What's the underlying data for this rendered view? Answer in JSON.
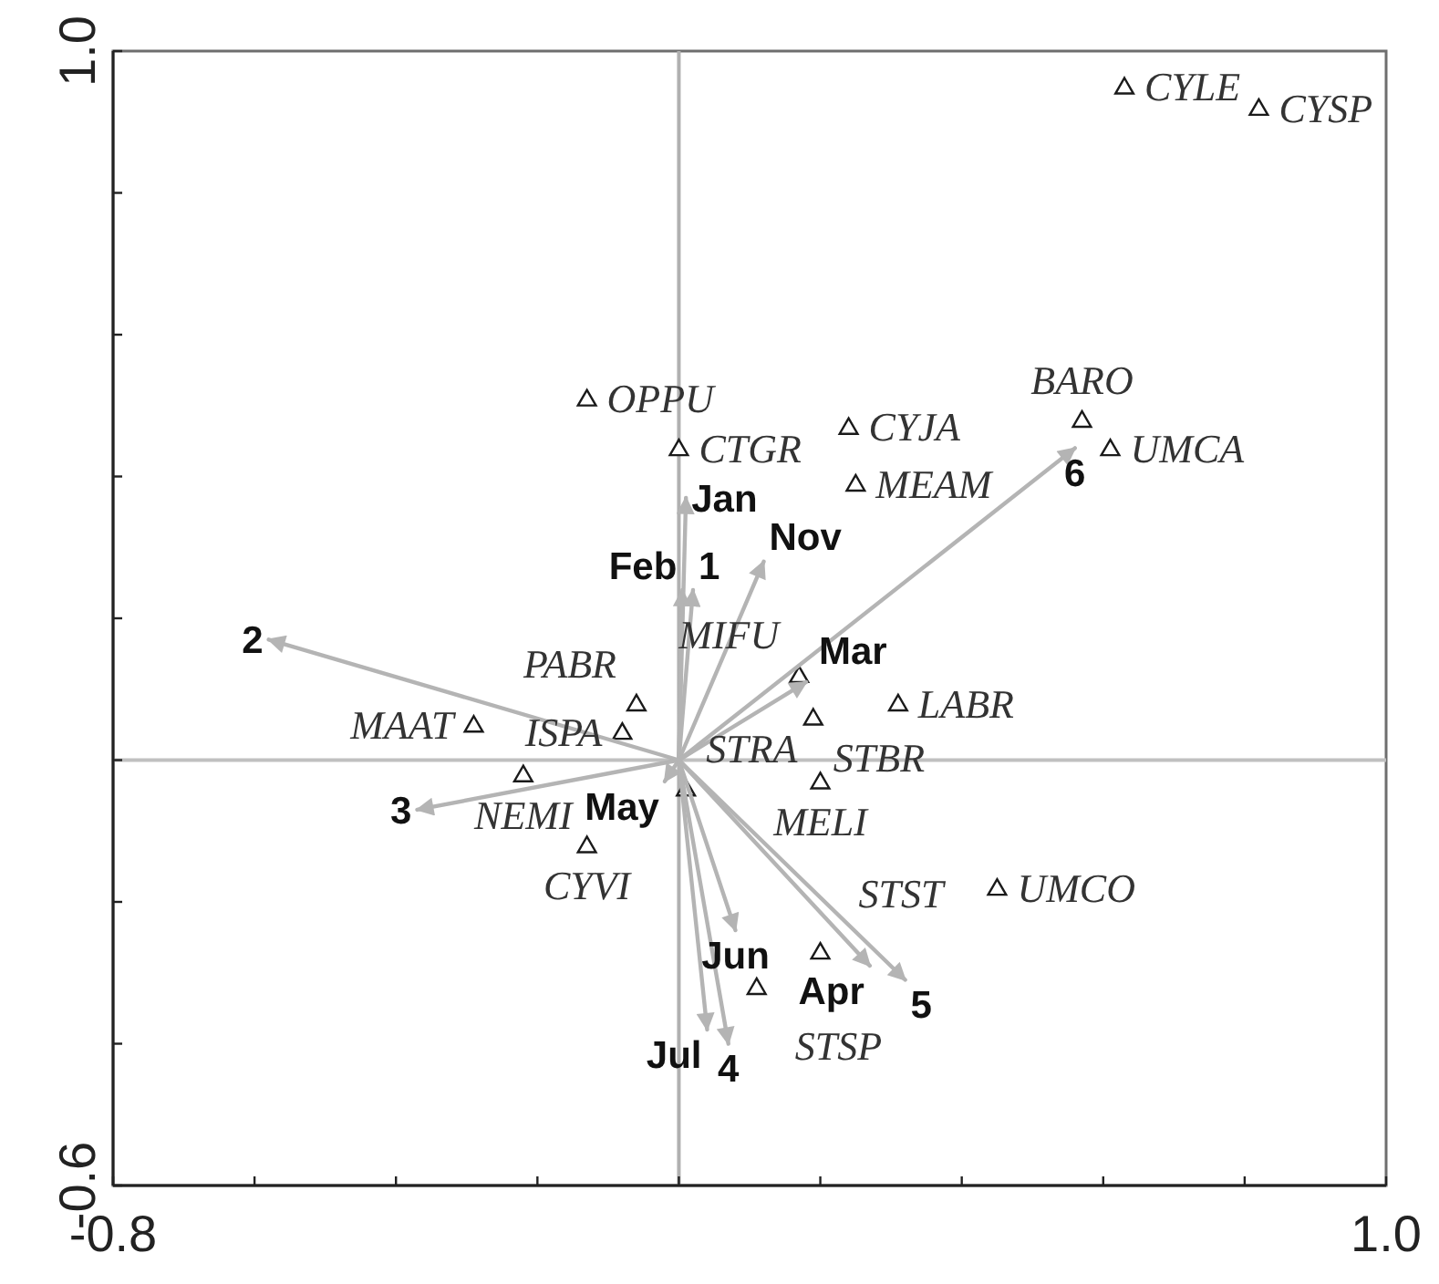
{
  "chart_data": {
    "type": "scatter",
    "xlim": [
      -0.8,
      1
    ],
    "ylim": [
      -0.6,
      1
    ],
    "xticks": [
      -0.8,
      {
        "value": -0.6,
        "label": null
      },
      {
        "value": -0.4,
        "label": null
      },
      {
        "value": -0.2,
        "label": null
      },
      {
        "value": 0,
        "label": null
      },
      {
        "value": 0.2,
        "label": null
      },
      {
        "value": 0.4,
        "label": null
      },
      {
        "value": 0.6,
        "label": null
      },
      {
        "value": 0.8,
        "label": null
      },
      {
        "value": 1,
        "label": "1.0"
      }
    ],
    "yticks": [
      -0.6,
      {
        "value": -0.4,
        "label": null
      },
      {
        "value": -0.2,
        "label": null
      },
      {
        "value": 0,
        "label": null
      },
      {
        "value": 0.2,
        "label": null
      },
      {
        "value": 0.4,
        "label": null
      },
      {
        "value": 0.6,
        "label": null
      },
      {
        "value": 0.8,
        "label": null
      },
      {
        "value": 1,
        "label": "1.0"
      }
    ],
    "ref_lines": [
      {
        "axis": "x",
        "value": 0,
        "color": "#b0b0b0"
      },
      {
        "axis": "y",
        "value": 0,
        "color": "#c0c0c0"
      }
    ],
    "series": [
      {
        "type": "scatter",
        "marker": "triangle",
        "color": "#1a1a1a",
        "x": [
          0.63,
          0.82,
          -0.13,
          0.0,
          0.24,
          0.57,
          0.61,
          0.25,
          0.17,
          -0.06,
          0.31,
          0.19,
          -0.29,
          -0.08,
          -0.22,
          0.2,
          0.01,
          -0.13,
          0.2,
          0.45,
          0.11
        ],
        "values": [
          0.95,
          0.92,
          0.51,
          0.44,
          0.47,
          0.48,
          0.44,
          0.39,
          0.12,
          0.08,
          0.08,
          0.06,
          0.05,
          0.04,
          -0.02,
          -0.03,
          -0.04,
          -0.12,
          -0.27,
          -0.18,
          -0.32
        ]
      },
      {
        "type": "line",
        "name": "Jan",
        "color": "#b4b4b4",
        "x": [
          0,
          0.01
        ],
        "values": [
          0,
          0.37
        ]
      },
      {
        "type": "line",
        "name": "Feb",
        "color": "#b4b4b4",
        "x": [
          0,
          0.005
        ],
        "values": [
          0,
          0.24
        ]
      },
      {
        "type": "line",
        "name": "1",
        "color": "#b4b4b4",
        "x": [
          0,
          0.02
        ],
        "values": [
          0,
          0.24
        ]
      },
      {
        "type": "line",
        "name": "Nov",
        "color": "#b4b4b4",
        "x": [
          0,
          0.12
        ],
        "values": [
          0,
          0.28
        ]
      },
      {
        "type": "line",
        "name": "2",
        "color": "#b4b4b4",
        "x": [
          0,
          -0.58
        ],
        "values": [
          0,
          0.17
        ]
      },
      {
        "type": "line",
        "name": "Mar",
        "color": "#b4b4b4",
        "x": [
          0,
          0.18
        ],
        "values": [
          0,
          0.11
        ]
      },
      {
        "type": "line",
        "name": "6",
        "color": "#b4b4b4",
        "x": [
          0,
          0.56
        ],
        "values": [
          0,
          0.44
        ]
      },
      {
        "type": "line",
        "name": "3",
        "color": "#b4b4b4",
        "x": [
          0,
          -0.37
        ],
        "values": [
          0,
          -0.07
        ]
      },
      {
        "type": "line",
        "name": "May",
        "color": "#b4b4b4",
        "x": [
          0,
          -0.02
        ],
        "values": [
          0,
          -0.03
        ]
      },
      {
        "type": "line",
        "name": "Jun",
        "color": "#b4b4b4",
        "x": [
          0,
          0.08
        ],
        "values": [
          0,
          -0.24
        ]
      },
      {
        "type": "line",
        "name": "Jul",
        "color": "#b4b4b4",
        "x": [
          0,
          0.04
        ],
        "values": [
          0,
          -0.38
        ]
      },
      {
        "type": "line",
        "name": "4",
        "color": "#b4b4b4",
        "x": [
          0,
          0.07
        ],
        "values": [
          0,
          -0.4
        ]
      },
      {
        "type": "line",
        "name": "Apr",
        "color": "#b4b4b4",
        "x": [
          0,
          0.27
        ],
        "values": [
          0,
          -0.29
        ]
      },
      {
        "type": "line",
        "name": "5",
        "color": "#b4b4b4",
        "x": [
          0,
          0.32
        ],
        "values": [
          0,
          -0.31
        ]
      }
    ],
    "annotations": [
      {
        "text": "CYLE",
        "x": 0.63,
        "y": 0.95
      },
      {
        "text": "CYSP",
        "x": 0.82,
        "y": 0.92
      },
      {
        "text": "OPPU",
        "x": -0.13,
        "y": 0.51
      },
      {
        "text": "CTGR",
        "x": 0.0,
        "y": 0.44
      },
      {
        "text": "CYJA",
        "x": 0.24,
        "y": 0.47
      },
      {
        "text": "BARO",
        "x": 0.57,
        "y": 0.48
      },
      {
        "text": "UMCA",
        "x": 0.61,
        "y": 0.44
      },
      {
        "text": "MEAM",
        "x": 0.25,
        "y": 0.39
      },
      {
        "text": "MIFU",
        "x": 0.17,
        "y": 0.12
      },
      {
        "text": "PABR",
        "x": -0.06,
        "y": 0.08
      },
      {
        "text": "LABR",
        "x": 0.31,
        "y": 0.08
      },
      {
        "text": "STBR",
        "x": 0.19,
        "y": 0.06
      },
      {
        "text": "MAAT",
        "x": -0.29,
        "y": 0.05
      },
      {
        "text": "ISPA",
        "x": -0.08,
        "y": 0.04
      },
      {
        "text": "NEMI",
        "x": -0.22,
        "y": -0.02
      },
      {
        "text": "MELI",
        "x": 0.2,
        "y": -0.03
      },
      {
        "text": "STRA",
        "x": 0.01,
        "y": -0.04
      },
      {
        "text": "CYVI",
        "x": -0.13,
        "y": -0.12
      },
      {
        "text": "STST",
        "x": 0.2,
        "y": -0.27
      },
      {
        "text": "UMCO",
        "x": 0.45,
        "y": -0.18
      },
      {
        "text": "STSP",
        "x": 0.11,
        "y": -0.32
      }
    ]
  }
}
